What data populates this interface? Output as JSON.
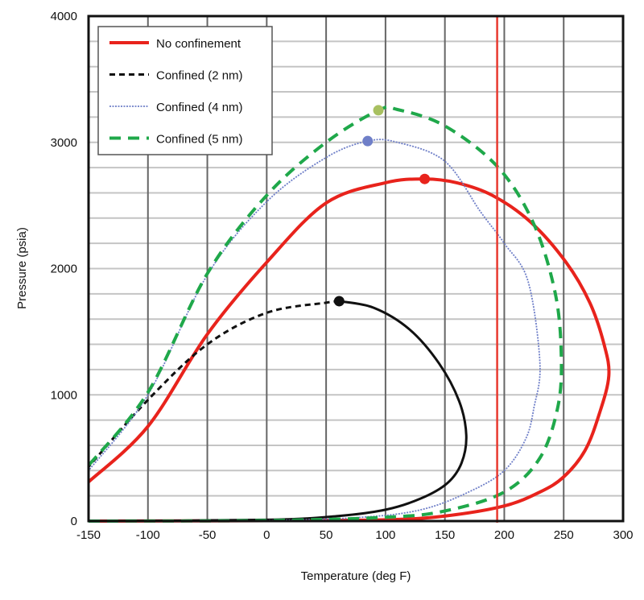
{
  "chart_data": {
    "type": "line",
    "title": "",
    "xlabel": "Temperature (deg F)",
    "ylabel": "Pressure (psia)",
    "xlim": [
      -150,
      300
    ],
    "ylim": [
      0,
      4000
    ],
    "xticks": [
      -150,
      -100,
      -50,
      0,
      50,
      100,
      150,
      200,
      250,
      300
    ],
    "yticks": [
      0,
      1000,
      2000,
      3000,
      4000
    ],
    "x_grid_step": 50,
    "y_grid_step": 200,
    "grid": true,
    "legend_position": "top-left",
    "reference_line": {
      "x": 194,
      "color": "#e8392f"
    },
    "series": [
      {
        "name": "No confinement",
        "color": "#e8231c",
        "style": "solid",
        "critical_point": [
          133,
          2710
        ],
        "points": [
          [
            -150,
            0
          ],
          [
            0,
            3
          ],
          [
            100,
            10
          ],
          [
            150,
            40
          ],
          [
            200,
            120
          ],
          [
            230,
            230
          ],
          [
            250,
            350
          ],
          [
            268,
            560
          ],
          [
            280,
            850
          ],
          [
            288,
            1150
          ],
          [
            284,
            1400
          ],
          [
            272,
            1730
          ],
          [
            252,
            2050
          ],
          [
            222,
            2370
          ],
          [
            190,
            2580
          ],
          [
            160,
            2680
          ],
          [
            133,
            2710
          ],
          [
            100,
            2680
          ],
          [
            50,
            2520
          ],
          [
            0,
            2050
          ],
          [
            -50,
            1480
          ],
          [
            -100,
            750
          ],
          [
            -150,
            310
          ]
        ]
      },
      {
        "name": "Confined (2 nm)",
        "color": "#111111",
        "style": "dashed",
        "critical_point": [
          61,
          1742
        ],
        "points": [
          [
            -150,
            0
          ],
          [
            0,
            10
          ],
          [
            60,
            40
          ],
          [
            100,
            90
          ],
          [
            130,
            180
          ],
          [
            152,
            300
          ],
          [
            164,
            460
          ],
          [
            168,
            680
          ],
          [
            162,
            950
          ],
          [
            145,
            1250
          ],
          [
            120,
            1520
          ],
          [
            90,
            1690
          ],
          [
            61,
            1742
          ],
          [
            50,
            1730
          ],
          [
            0,
            1650
          ],
          [
            -50,
            1400
          ],
          [
            -100,
            960
          ],
          [
            -150,
            430
          ]
        ],
        "dashed_until_x": 61
      },
      {
        "name": "Confined (4 nm)",
        "color": "#6f7fc8",
        "style": "dotted",
        "critical_point": [
          85,
          3010
        ],
        "points": [
          [
            -150,
            0
          ],
          [
            0,
            5
          ],
          [
            80,
            30
          ],
          [
            130,
            90
          ],
          [
            170,
            230
          ],
          [
            200,
            400
          ],
          [
            218,
            650
          ],
          [
            225,
            900
          ],
          [
            230,
            1250
          ],
          [
            220,
            1900
          ],
          [
            200,
            2200
          ],
          [
            180,
            2450
          ],
          [
            150,
            2850
          ],
          [
            110,
            3000
          ],
          [
            85,
            3010
          ],
          [
            50,
            2880
          ],
          [
            0,
            2530
          ],
          [
            -50,
            1950
          ],
          [
            -100,
            1000
          ],
          [
            -150,
            400
          ]
        ]
      },
      {
        "name": "Confined (5 nm)",
        "color": "#1fa84a",
        "style": "dashed",
        "critical_point": [
          94,
          3254
        ],
        "critical_point_color": "#a8c060",
        "points": [
          [
            -150,
            0
          ],
          [
            0,
            5
          ],
          [
            100,
            30
          ],
          [
            150,
            80
          ],
          [
            200,
            230
          ],
          [
            230,
            500
          ],
          [
            245,
            900
          ],
          [
            248,
            1300
          ],
          [
            243,
            1800
          ],
          [
            225,
            2350
          ],
          [
            195,
            2800
          ],
          [
            150,
            3130
          ],
          [
            110,
            3260
          ],
          [
            94,
            3254
          ],
          [
            50,
            3000
          ],
          [
            0,
            2580
          ],
          [
            -50,
            1960
          ],
          [
            -100,
            1020
          ],
          [
            -150,
            440
          ]
        ]
      }
    ]
  }
}
